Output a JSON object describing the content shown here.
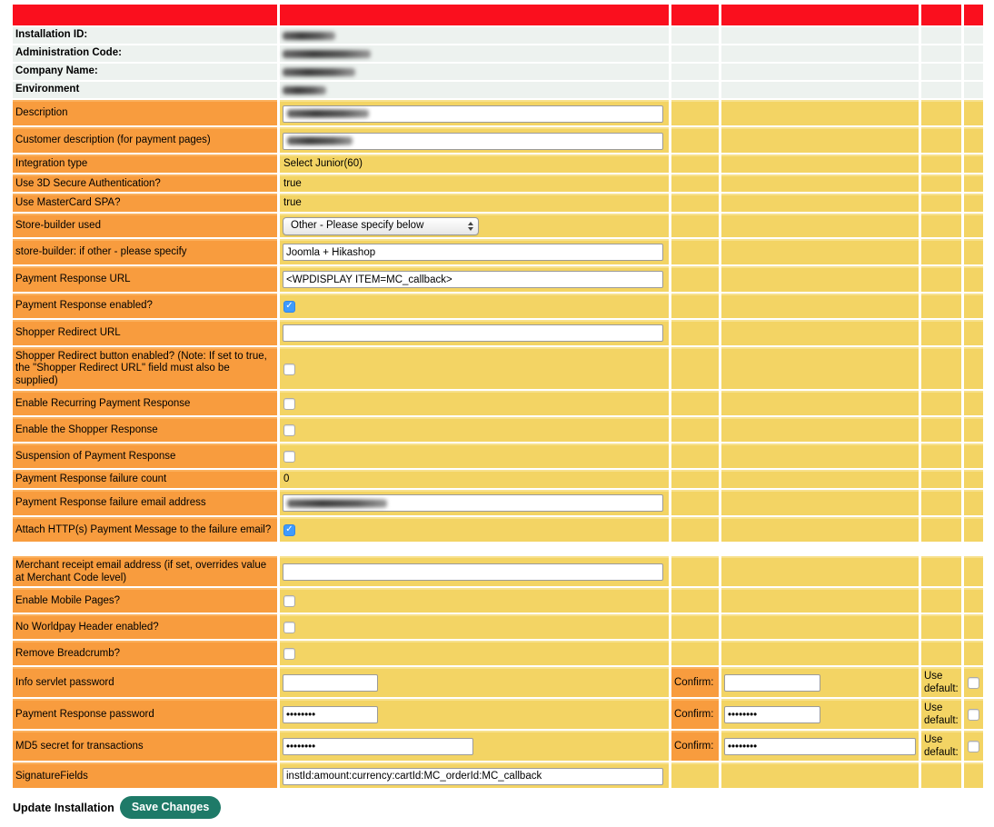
{
  "colors": {
    "header_red": "#fa0f1e",
    "label_orange": "#f89c3e",
    "value_yellow": "#f3d464",
    "info_gray": "#edf2ef",
    "button_teal": "#1e7a68",
    "checkbox_blue": "#3f9bfc"
  },
  "table": {
    "info_rows": [
      {
        "label": "Installation ID:",
        "redacted": true,
        "redact_w": 58
      },
      {
        "label": "Administration Code:",
        "redacted": true,
        "redact_w": 97
      },
      {
        "label": "Company Name:",
        "redacted": true,
        "redact_w": 80
      },
      {
        "label": "Environment",
        "redacted": true,
        "redact_w": 48
      }
    ],
    "rows": [
      {
        "label": "Description",
        "type": "text",
        "value": "",
        "redacted": true,
        "redact_w": 90
      },
      {
        "label": "Customer description (for payment pages)",
        "type": "text",
        "value": "",
        "redacted": true,
        "redact_w": 72
      },
      {
        "label": "Integration type",
        "type": "static",
        "value": "Select Junior(60)"
      },
      {
        "label": "Use 3D Secure Authentication?",
        "type": "static",
        "value": "true"
      },
      {
        "label": "Use MasterCard SPA?",
        "type": "static",
        "value": "true"
      },
      {
        "label": "Store-builder used",
        "type": "select",
        "value": "Other - Please specify below"
      },
      {
        "label": "store-builder: if other - please specify",
        "type": "text",
        "value": "Joomla + Hikashop"
      },
      {
        "label": "Payment Response URL",
        "type": "text",
        "value": "<WPDISPLAY ITEM=MC_callback>"
      },
      {
        "label": "Payment Response enabled?",
        "type": "checkbox",
        "checked": true
      },
      {
        "label": "Shopper Redirect URL",
        "type": "text",
        "value": ""
      },
      {
        "label": "Shopper Redirect button enabled? (Note: If set to true, the \"Shopper Redirect URL\" field must also be supplied)",
        "type": "checkbox",
        "checked": false
      },
      {
        "label": "Enable Recurring Payment Response",
        "type": "checkbox",
        "checked": false
      },
      {
        "label": "Enable the Shopper Response",
        "type": "checkbox",
        "checked": false
      },
      {
        "label": "Suspension of Payment Response",
        "type": "checkbox",
        "checked": false
      },
      {
        "label": "Payment Response failure count",
        "type": "static",
        "value": "0"
      },
      {
        "label": "Payment Response failure email address",
        "type": "text",
        "value": "",
        "redacted": true,
        "redact_w": 110
      },
      {
        "label": "Attach HTTP(s) Payment Message to the failure email?",
        "type": "checkbox",
        "checked": true
      },
      {
        "type": "spacer"
      },
      {
        "label": "Merchant receipt email address (if set, overrides value at Merchant Code level)",
        "type": "text",
        "value": ""
      },
      {
        "label": "Enable Mobile Pages?",
        "type": "checkbox",
        "checked": false
      },
      {
        "label": "No Worldpay Header enabled?",
        "type": "checkbox",
        "checked": false
      },
      {
        "label": "Remove Breadcrumb?",
        "type": "checkbox",
        "checked": false
      },
      {
        "label": "Info servlet password",
        "type": "password",
        "value": "",
        "input_w": 105,
        "confirm": {
          "label": "Confirm:",
          "value": "",
          "input_w": 106
        },
        "use_default": {
          "label": "Use default:",
          "checked": false
        }
      },
      {
        "label": "Payment Response password",
        "type": "password",
        "value": "••••••••",
        "input_w": 105,
        "confirm": {
          "label": "Confirm:",
          "value": "••••••••",
          "input_w": 106
        },
        "use_default": {
          "label": "Use default:",
          "checked": false
        }
      },
      {
        "label": "MD5 secret for transactions",
        "type": "password",
        "value": "••••••••",
        "input_w": 210,
        "confirm": {
          "label": "Confirm:",
          "value": "••••••••",
          "input_w": 213
        },
        "use_default": {
          "label": "Use default:",
          "checked": false
        }
      },
      {
        "label": "SignatureFields",
        "type": "text",
        "value": "instId:amount:currency:cartId:MC_orderId:MC_callback"
      }
    ]
  },
  "footer": {
    "update_label": "Update Installation",
    "save_button": "Save Changes"
  }
}
